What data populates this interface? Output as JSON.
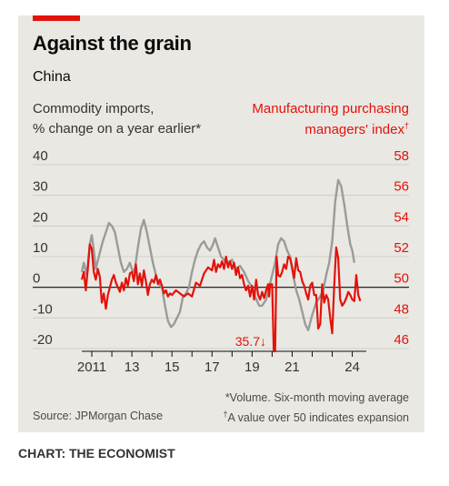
{
  "title": "Against the grain",
  "subtitle": "China",
  "left_label_1": "Commodity imports,",
  "left_label_2": "% change on a year earlier*",
  "right_label_1": "Manufacturing purchasing",
  "right_label_2": "managers' index",
  "right_label_mark": "†",
  "annotation": "35.7↓",
  "note_1": "*Volume. Six-month moving average",
  "note_2_mark": "†",
  "note_2": "A value over 50 indicates expansion",
  "source": "Source: JPMorgan Chase",
  "credit": "CHART: THE ECONOMIST",
  "colors": {
    "grey": "#9b9b98",
    "red": "#e3120b",
    "bg": "#e9e8e3"
  },
  "chart_data": {
    "type": "line",
    "y_left": {
      "ticks": [
        "40",
        "30",
        "20",
        "10",
        "0",
        "-10",
        "-20"
      ],
      "values": [
        40,
        30,
        20,
        10,
        0,
        -10,
        -20
      ],
      "range": [
        -20,
        40
      ]
    },
    "y_right": {
      "ticks": [
        "58",
        "56",
        "54",
        "52",
        "50",
        "48",
        "46"
      ],
      "values": [
        58,
        56,
        54,
        52,
        50,
        48,
        46
      ],
      "range": [
        46,
        58
      ]
    },
    "x_ticks": [
      "2011",
      "13",
      "15",
      "17",
      "19",
      "21",
      "24"
    ],
    "x_tick_years": [
      2011,
      2013,
      2015,
      2017,
      2019,
      2021,
      2024
    ],
    "x_range": [
      2010.5,
      2024.7
    ],
    "series": [
      {
        "axis": "left",
        "color": "#9b9b98",
        "points": [
          [
            2010.5,
            5
          ],
          [
            2010.6,
            8
          ],
          [
            2010.75,
            4
          ],
          [
            2010.9,
            14
          ],
          [
            2011.0,
            17
          ],
          [
            2011.1,
            12
          ],
          [
            2011.2,
            6
          ],
          [
            2011.35,
            10
          ],
          [
            2011.55,
            15
          ],
          [
            2011.7,
            18
          ],
          [
            2011.85,
            21
          ],
          [
            2012.0,
            20
          ],
          [
            2012.15,
            18
          ],
          [
            2012.3,
            13
          ],
          [
            2012.45,
            8
          ],
          [
            2012.6,
            5
          ],
          [
            2012.75,
            6
          ],
          [
            2012.9,
            8
          ],
          [
            2013.05,
            5
          ],
          [
            2013.15,
            6
          ],
          [
            2013.3,
            13
          ],
          [
            2013.45,
            19
          ],
          [
            2013.6,
            22
          ],
          [
            2013.75,
            18
          ],
          [
            2013.9,
            13
          ],
          [
            2014.05,
            8
          ],
          [
            2014.2,
            4
          ],
          [
            2014.35,
            1
          ],
          [
            2014.5,
            0
          ],
          [
            2014.65,
            -6
          ],
          [
            2014.8,
            -11
          ],
          [
            2014.95,
            -13
          ],
          [
            2015.1,
            -12
          ],
          [
            2015.25,
            -10
          ],
          [
            2015.4,
            -8
          ],
          [
            2015.55,
            -3
          ],
          [
            2015.7,
            -2
          ],
          [
            2015.85,
            0
          ],
          [
            2016.0,
            5
          ],
          [
            2016.15,
            9
          ],
          [
            2016.3,
            12
          ],
          [
            2016.45,
            14
          ],
          [
            2016.6,
            15
          ],
          [
            2016.75,
            13
          ],
          [
            2016.9,
            12
          ],
          [
            2017.05,
            14
          ],
          [
            2017.15,
            16
          ],
          [
            2017.3,
            13
          ],
          [
            2017.45,
            10
          ],
          [
            2017.6,
            9
          ],
          [
            2017.8,
            8
          ],
          [
            2018.0,
            9
          ],
          [
            2018.2,
            6
          ],
          [
            2018.4,
            7
          ],
          [
            2018.6,
            5
          ],
          [
            2018.8,
            2
          ],
          [
            2019.0,
            0
          ],
          [
            2019.15,
            -3
          ],
          [
            2019.35,
            -6
          ],
          [
            2019.5,
            -6
          ],
          [
            2019.7,
            -4
          ],
          [
            2019.85,
            0
          ],
          [
            2020.0,
            4
          ],
          [
            2020.15,
            8
          ],
          [
            2020.3,
            14
          ],
          [
            2020.45,
            16
          ],
          [
            2020.6,
            15
          ],
          [
            2020.75,
            12
          ],
          [
            2020.9,
            10
          ],
          [
            2021.05,
            4
          ],
          [
            2021.2,
            -1
          ],
          [
            2021.35,
            -4
          ],
          [
            2021.5,
            -8
          ],
          [
            2021.65,
            -12
          ],
          [
            2021.8,
            -14
          ],
          [
            2022.0,
            -9
          ],
          [
            2022.2,
            -5
          ],
          [
            2022.4,
            -3
          ],
          [
            2022.55,
            -1
          ],
          [
            2022.7,
            4
          ],
          [
            2022.85,
            8
          ],
          [
            2023.0,
            15
          ],
          [
            2023.15,
            28
          ],
          [
            2023.3,
            35
          ],
          [
            2023.45,
            33
          ],
          [
            2023.6,
            27
          ],
          [
            2023.75,
            20
          ],
          [
            2023.9,
            14
          ],
          [
            2024.0,
            12
          ],
          [
            2024.1,
            8
          ]
        ]
      },
      {
        "axis": "right",
        "color": "#e3120b",
        "points": [
          [
            2010.5,
            50.5
          ],
          [
            2010.6,
            51
          ],
          [
            2010.7,
            49.8
          ],
          [
            2010.8,
            51.2
          ],
          [
            2010.9,
            52.8
          ],
          [
            2011.0,
            52.5
          ],
          [
            2011.1,
            51
          ],
          [
            2011.2,
            50.5
          ],
          [
            2011.3,
            51.2
          ],
          [
            2011.4,
            50.7
          ],
          [
            2011.5,
            49
          ],
          [
            2011.6,
            49.6
          ],
          [
            2011.7,
            48.6
          ],
          [
            2011.8,
            49.5
          ],
          [
            2011.9,
            50
          ],
          [
            2012.0,
            50.5
          ],
          [
            2012.1,
            50.8
          ],
          [
            2012.2,
            50.3
          ],
          [
            2012.3,
            50
          ],
          [
            2012.4,
            49.7
          ],
          [
            2012.5,
            50.3
          ],
          [
            2012.6,
            49.8
          ],
          [
            2012.7,
            50.6
          ],
          [
            2012.8,
            50.1
          ],
          [
            2012.9,
            50.9
          ],
          [
            2013.0,
            51
          ],
          [
            2013.1,
            50.4
          ],
          [
            2013.2,
            51.5
          ],
          [
            2013.3,
            50.2
          ],
          [
            2013.4,
            50.9
          ],
          [
            2013.5,
            50.1
          ],
          [
            2013.6,
            51.1
          ],
          [
            2013.7,
            50.4
          ],
          [
            2013.8,
            49.5
          ],
          [
            2013.9,
            50.2
          ],
          [
            2014.0,
            50.5
          ],
          [
            2014.1,
            50.3
          ],
          [
            2014.2,
            50.8
          ],
          [
            2014.3,
            50.2
          ],
          [
            2014.4,
            50.5
          ],
          [
            2014.5,
            50.1
          ],
          [
            2014.6,
            49.6
          ],
          [
            2014.7,
            49.8
          ],
          [
            2014.8,
            49.4
          ],
          [
            2014.9,
            49.6
          ],
          [
            2015.0,
            49.5
          ],
          [
            2015.2,
            49.8
          ],
          [
            2015.4,
            49.6
          ],
          [
            2015.6,
            49.4
          ],
          [
            2015.8,
            49.6
          ],
          [
            2016.0,
            49.4
          ],
          [
            2016.2,
            50.3
          ],
          [
            2016.4,
            50.1
          ],
          [
            2016.6,
            50.9
          ],
          [
            2016.8,
            51.3
          ],
          [
            2017.0,
            51.1
          ],
          [
            2017.1,
            51.8
          ],
          [
            2017.2,
            51
          ],
          [
            2017.3,
            51.5
          ],
          [
            2017.4,
            51.3
          ],
          [
            2017.5,
            51.7
          ],
          [
            2017.6,
            51.2
          ],
          [
            2017.7,
            52
          ],
          [
            2017.8,
            51.3
          ],
          [
            2017.9,
            51.7
          ],
          [
            2018.0,
            51.2
          ],
          [
            2018.1,
            51.6
          ],
          [
            2018.2,
            50.8
          ],
          [
            2018.3,
            51.3
          ],
          [
            2018.4,
            50.6
          ],
          [
            2018.5,
            50.8
          ],
          [
            2018.6,
            50.2
          ],
          [
            2018.7,
            49.8
          ],
          [
            2018.8,
            50.1
          ],
          [
            2018.9,
            49.4
          ],
          [
            2019.0,
            50.1
          ],
          [
            2019.1,
            49.2
          ],
          [
            2019.2,
            50.5
          ],
          [
            2019.3,
            49.5
          ],
          [
            2019.4,
            49.2
          ],
          [
            2019.5,
            49.7
          ],
          [
            2019.6,
            49.3
          ],
          [
            2019.7,
            49.8
          ],
          [
            2019.8,
            50.2
          ],
          [
            2019.85,
            49.4
          ],
          [
            2019.9,
            50.2
          ],
          [
            2020.0,
            50.2
          ],
          [
            2020.08,
            40
          ],
          [
            2020.15,
            35.7
          ],
          [
            2020.22,
            52
          ],
          [
            2020.3,
            50.8
          ],
          [
            2020.4,
            50.7
          ],
          [
            2020.5,
            51
          ],
          [
            2020.6,
            51.5
          ],
          [
            2020.7,
            51.2
          ],
          [
            2020.8,
            52
          ],
          [
            2020.9,
            51.9
          ],
          [
            2021.0,
            51.3
          ],
          [
            2021.1,
            50.6
          ],
          [
            2021.2,
            51.9
          ],
          [
            2021.3,
            51.1
          ],
          [
            2021.4,
            51
          ],
          [
            2021.5,
            50.4
          ],
          [
            2021.6,
            50.1
          ],
          [
            2021.7,
            49.6
          ],
          [
            2021.8,
            49.2
          ],
          [
            2021.9,
            50.1
          ],
          [
            2022.0,
            50.3
          ],
          [
            2022.1,
            49.5
          ],
          [
            2022.2,
            49.5
          ],
          [
            2022.3,
            47.3
          ],
          [
            2022.4,
            47.6
          ],
          [
            2022.5,
            50.2
          ],
          [
            2022.6,
            49
          ],
          [
            2022.7,
            49.5
          ],
          [
            2022.8,
            49.2
          ],
          [
            2022.9,
            48
          ],
          [
            2023.0,
            47
          ],
          [
            2023.1,
            50.1
          ],
          [
            2023.2,
            52.6
          ],
          [
            2023.3,
            51.9
          ],
          [
            2023.4,
            49.2
          ],
          [
            2023.5,
            48.8
          ],
          [
            2023.6,
            49
          ],
          [
            2023.7,
            49.3
          ],
          [
            2023.8,
            49.7
          ],
          [
            2023.9,
            49.5
          ],
          [
            2024.0,
            49.2
          ],
          [
            2024.1,
            49.1
          ],
          [
            2024.2,
            50.8
          ],
          [
            2024.3,
            49.5
          ],
          [
            2024.4,
            49.1
          ]
        ]
      }
    ]
  }
}
